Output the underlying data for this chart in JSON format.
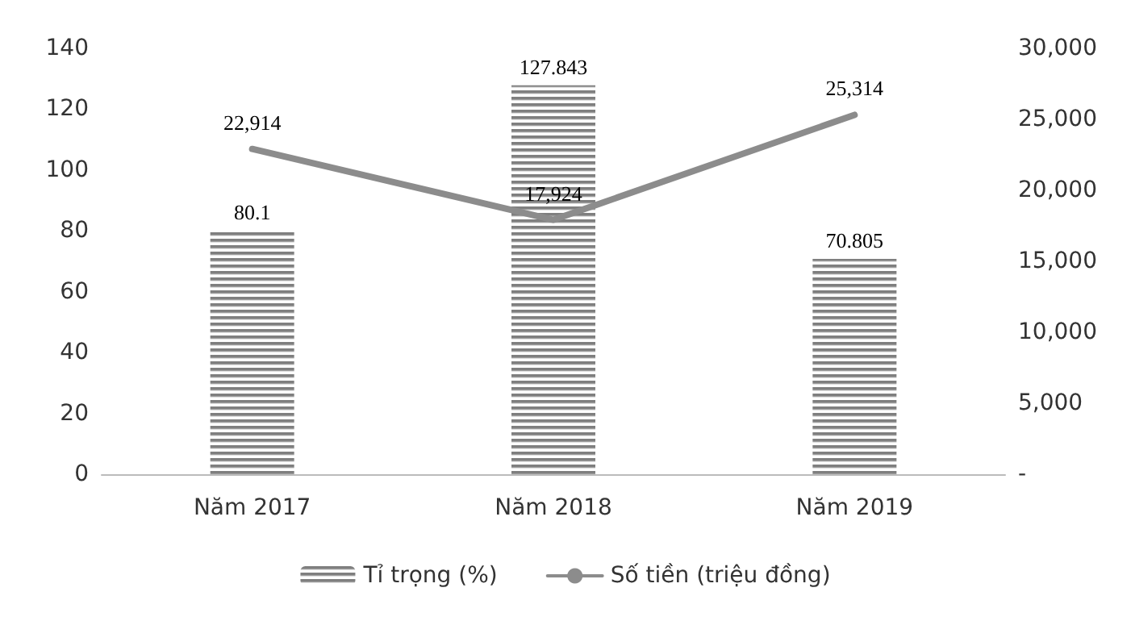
{
  "chart_data": {
    "type": "bar",
    "categories": [
      "Năm 2017",
      "Năm 2018",
      "Năm 2019"
    ],
    "series": [
      {
        "name": "Tỉ trọng (%)",
        "color": "#7f7f7f",
        "values": [
          80.1,
          127.843,
          70.805
        ],
        "value_labels": [
          "80.1",
          "127.843",
          "70.805"
        ]
      },
      {
        "name": "Số tiền (triệu đồng)",
        "type": "line",
        "axis": "y2",
        "color": "#8c8c8c",
        "values": [
          22914,
          17924,
          25314
        ],
        "value_labels": [
          "22,914",
          "17,924",
          "25,314"
        ]
      }
    ],
    "ylim": [
      0,
      140
    ],
    "yticks": [
      0,
      20,
      40,
      60,
      80,
      100,
      120,
      140
    ],
    "y2lim": [
      0,
      30000
    ],
    "y2ticks": [
      {
        "value": 0,
        "label": "-"
      },
      {
        "value": 5000,
        "label": "5,000"
      },
      {
        "value": 10000,
        "label": "10,000"
      },
      {
        "value": 15000,
        "label": "15,000"
      },
      {
        "value": 20000,
        "label": "20,000"
      },
      {
        "value": 25000,
        "label": "25,000"
      },
      {
        "value": 30000,
        "label": "30,000"
      }
    ],
    "legend": "bottom",
    "grid": false,
    "marker": "none"
  }
}
